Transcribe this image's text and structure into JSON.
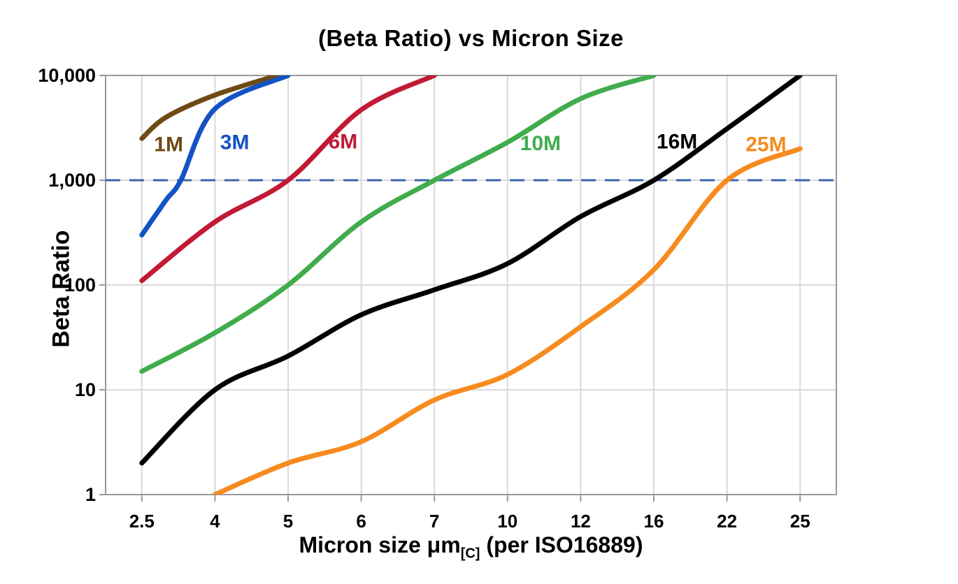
{
  "title": "(Beta Ratio) vs Micron Size",
  "y_axis": {
    "label": "Beta Ratio",
    "tick_labels": [
      "10,000",
      "1,000",
      "100",
      "10",
      "1"
    ]
  },
  "x_axis": {
    "label_prefix": "Micron size μm",
    "label_subscript": "[C]",
    "label_suffix": " (per ISO16889)",
    "tick_labels": [
      "2.5",
      "4",
      "5",
      "6",
      "7",
      "10",
      "12",
      "16",
      "22",
      "25"
    ]
  },
  "colors": {
    "grid": "#d9d9d9",
    "axis_border": "#999999",
    "reference_line": "#3b63ae",
    "text": "#000000"
  },
  "chart_data": {
    "type": "line",
    "title": "(Beta Ratio) vs Micron Size",
    "xlabel": "Micron size μm[C] (per ISO16889)",
    "ylabel": "Beta Ratio",
    "y_scale": "log",
    "ylim": [
      1,
      10000
    ],
    "x_ticks": [
      2.5,
      4,
      5,
      6,
      7,
      10,
      12,
      16,
      22,
      25
    ],
    "x_tick_spacing": "equal",
    "grid": true,
    "reference_line": {
      "y": 1000,
      "style": "dashed",
      "color": "#3b63ae"
    },
    "series": [
      {
        "name": "1M",
        "color": "#6f4a15",
        "points": [
          [
            2.5,
            2500
          ],
          [
            3,
            4000
          ],
          [
            4,
            6500
          ],
          [
            4.85,
            10000
          ]
        ]
      },
      {
        "name": "3M",
        "color": "#1353c4",
        "points": [
          [
            2.5,
            300
          ],
          [
            3,
            650
          ],
          [
            3.3,
            1000
          ],
          [
            4,
            4800
          ],
          [
            5,
            10000
          ]
        ]
      },
      {
        "name": "6M",
        "color": "#c11a35",
        "points": [
          [
            2.5,
            110
          ],
          [
            4,
            400
          ],
          [
            5,
            1000
          ],
          [
            6,
            4700
          ],
          [
            7,
            10000
          ]
        ]
      },
      {
        "name": "10M",
        "color": "#41ac4d",
        "points": [
          [
            2.5,
            15
          ],
          [
            4,
            35
          ],
          [
            5,
            100
          ],
          [
            6,
            400
          ],
          [
            7,
            1000
          ],
          [
            10,
            2300
          ],
          [
            12,
            6000
          ],
          [
            16,
            10000
          ]
        ]
      },
      {
        "name": "16M",
        "color": "#000000",
        "points": [
          [
            2.5,
            2
          ],
          [
            4,
            10
          ],
          [
            5,
            21
          ],
          [
            6,
            52
          ],
          [
            7,
            90
          ],
          [
            10,
            160
          ],
          [
            12,
            450
          ],
          [
            16,
            1000
          ],
          [
            22,
            3100
          ],
          [
            25,
            10000
          ]
        ]
      },
      {
        "name": "25M",
        "color": "#f68b1f",
        "points": [
          [
            4,
            1
          ],
          [
            5,
            2
          ],
          [
            6,
            3.2
          ],
          [
            7,
            8
          ],
          [
            10,
            14
          ],
          [
            12,
            40
          ],
          [
            16,
            140
          ],
          [
            22,
            1000
          ],
          [
            25,
            2000
          ]
        ]
      }
    ],
    "labels": [
      {
        "text": "1M",
        "x": 3.05,
        "y": 2200,
        "color": "#6f4a15"
      },
      {
        "text": "3M",
        "x": 4.27,
        "y": 2300,
        "color": "#1353c4"
      },
      {
        "text": "6M",
        "x": 5.75,
        "y": 2350,
        "color": "#c11a35"
      },
      {
        "text": "10M",
        "x": 10.9,
        "y": 2250,
        "color": "#41ac4d"
      },
      {
        "text": "16M",
        "x": 17.9,
        "y": 2350,
        "color": "#000000"
      },
      {
        "text": "25M",
        "x": 23.6,
        "y": 2200,
        "color": "#f68b1f"
      }
    ]
  }
}
